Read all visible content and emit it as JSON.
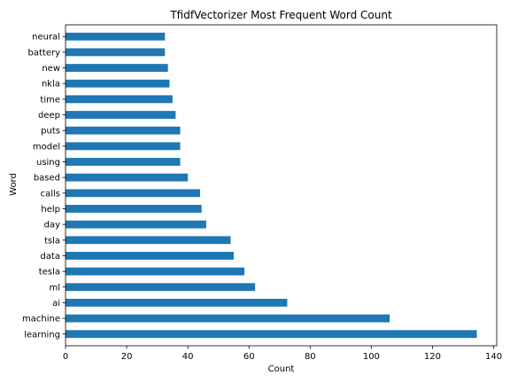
{
  "chart_data": {
    "type": "bar",
    "orientation": "horizontal",
    "title": "TfidfVectorizer Most Frequent Word Count",
    "xlabel": "Count",
    "ylabel": "Word",
    "xlim": [
      0,
      141
    ],
    "xticks": [
      0,
      20,
      40,
      60,
      80,
      100,
      120,
      140
    ],
    "grid": false,
    "bar_color": "#1f77b4",
    "categories": [
      "learning",
      "machine",
      "ai",
      "ml",
      "tesla",
      "data",
      "tsla",
      "day",
      "help",
      "calls",
      "based",
      "using",
      "model",
      "puts",
      "deep",
      "time",
      "nkla",
      "new",
      "battery",
      "neural"
    ],
    "values": [
      134.5,
      106,
      72.5,
      62,
      58.5,
      55,
      54,
      46,
      44.5,
      44,
      40,
      37.5,
      37.5,
      37.5,
      36,
      35,
      34,
      33.5,
      32.5,
      32.5
    ]
  }
}
